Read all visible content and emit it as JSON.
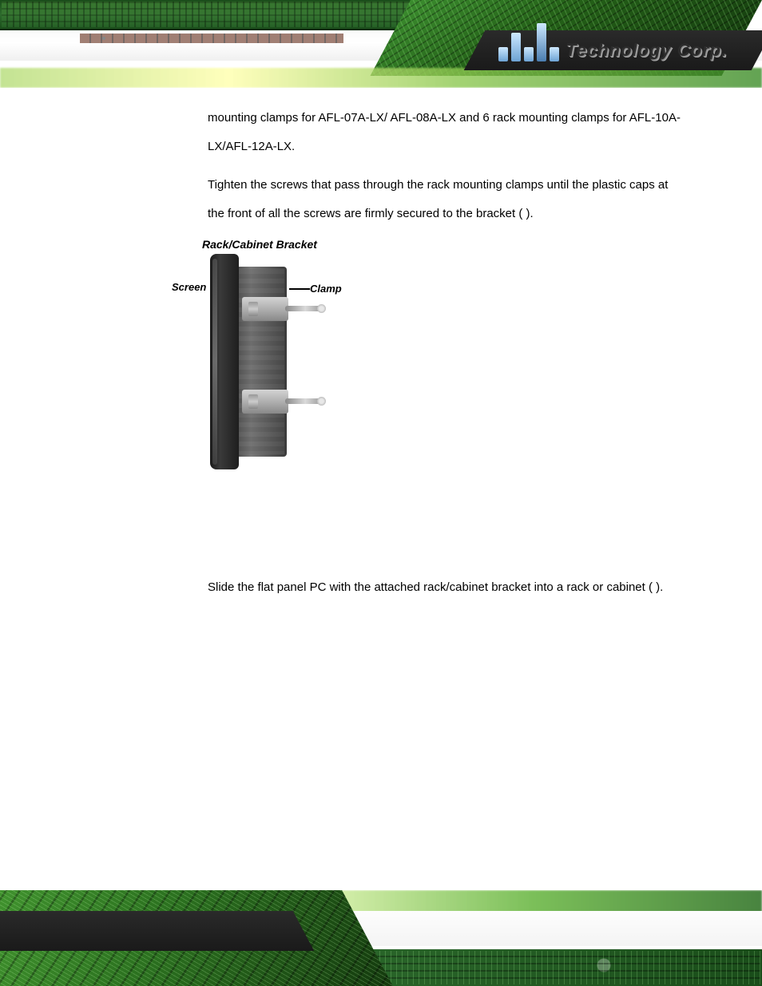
{
  "header": {
    "logo_text": "Technology Corp.",
    "brand_color": "#2d6b2d",
    "accent_gradient": [
      "#4aa235",
      "#143a0e"
    ]
  },
  "body": {
    "para1": "mounting clamps for AFL-07A-LX/ AFL-08A-LX and 6 rack mounting clamps for AFL-10A-LX/AFL-12A-LX.",
    "para2": "Tighten the screws that pass through the rack mounting clamps until the plastic caps at the front of all the screws are firmly secured to the bracket (                     ).",
    "para3": "Slide the flat panel PC with the attached rack/cabinet bracket into a rack or cabinet (                     )."
  },
  "figure": {
    "title": "Rack/Cabinet Bracket",
    "label_left": "Screen",
    "label_right": "Clamp",
    "colors": {
      "bezel": "#1e1e1e",
      "chassis": "#555555",
      "clamp": "#b8b8b8",
      "screw": "#c8c8c8"
    }
  },
  "colors": {
    "text": "#000000",
    "background": "#ffffff"
  },
  "font": {
    "body_size_pt": 11,
    "line_height": 2.4,
    "family": "Arial"
  }
}
